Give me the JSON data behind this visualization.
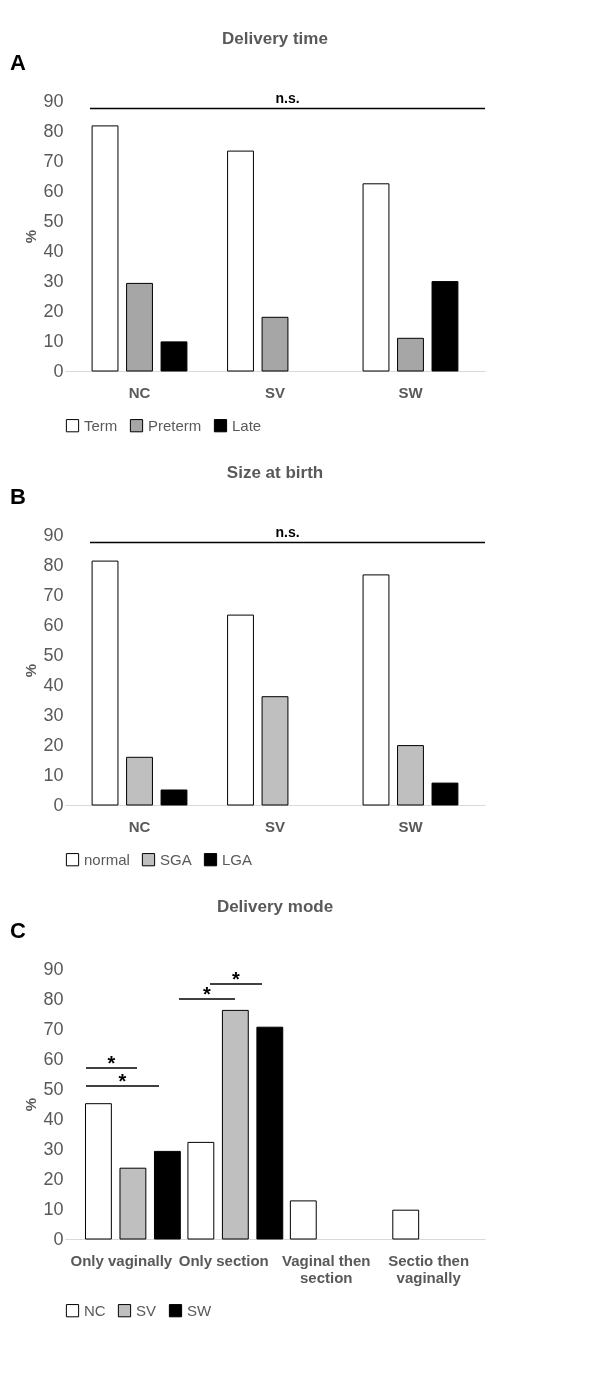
{
  "chart_data": [
    {
      "type": "bar",
      "title": "Delivery time",
      "ylabel": "%",
      "categories": [
        "NC",
        "SV",
        "SW"
      ],
      "series": [
        {
          "name": "Term",
          "color": "#ffffff",
          "values": [
            81.7,
            73.3,
            62.4
          ]
        },
        {
          "name": "Preterm",
          "color": "#a6a6a6",
          "values": [
            29.2,
            17.9,
            10.9
          ]
        },
        {
          "name": "Late",
          "color": "#000000",
          "values": [
            9.7,
            null,
            29.8
          ]
        }
      ],
      "ylim": [
        0,
        90
      ],
      "yticks": [
        0,
        10,
        20,
        30,
        40,
        50,
        60,
        70,
        80,
        90
      ],
      "grid": false,
      "legend": "bottom",
      "annotations": [
        "A"
      ],
      "ref_lines": [
        {
          "axis": "y",
          "value": 87.5,
          "label": "n.s.",
          "color": "#000000"
        }
      ]
    },
    {
      "type": "bar",
      "title": "Size at birth",
      "ylabel": "%",
      "categories": [
        "NC",
        "SV",
        "SW"
      ],
      "series": [
        {
          "name": "normal",
          "color": "#ffffff",
          "values": [
            81.3,
            63.3,
            76.7
          ]
        },
        {
          "name": "SGA",
          "color": "#bfbfbf",
          "values": [
            15.9,
            36.1,
            19.8
          ]
        },
        {
          "name": "LGA",
          "color": "#000000",
          "values": [
            5.0,
            null,
            7.3
          ]
        }
      ],
      "ylim": [
        0,
        90
      ],
      "yticks": [
        0,
        10,
        20,
        30,
        40,
        50,
        60,
        70,
        80,
        90
      ],
      "grid": false,
      "legend": "bottom",
      "annotations": [
        "B"
      ],
      "ref_lines": [
        {
          "axis": "y",
          "value": 87.5,
          "label": "n.s.",
          "color": "#000000"
        }
      ]
    },
    {
      "type": "bar",
      "title": "Delivery mode",
      "ylabel": "%",
      "categories": [
        "Only vaginally",
        "Only section",
        "Vaginal then section",
        "Sectio then vaginally"
      ],
      "series": [
        {
          "name": "NC",
          "color": "#ffffff",
          "values": [
            45.1,
            32.2,
            12.7,
            9.6
          ]
        },
        {
          "name": "SV",
          "color": "#bfbfbf",
          "values": [
            23.6,
            76.2,
            null,
            null
          ]
        },
        {
          "name": "SW",
          "color": "#000000",
          "values": [
            29.2,
            70.6,
            null,
            null
          ]
        }
      ],
      "ylim": [
        0,
        90
      ],
      "yticks": [
        0,
        10,
        20,
        30,
        40,
        50,
        60,
        70,
        80,
        90
      ],
      "grid": false,
      "legend": "bottom",
      "annotations": [
        "C",
        "*",
        "*",
        "*",
        "*"
      ]
    }
  ]
}
